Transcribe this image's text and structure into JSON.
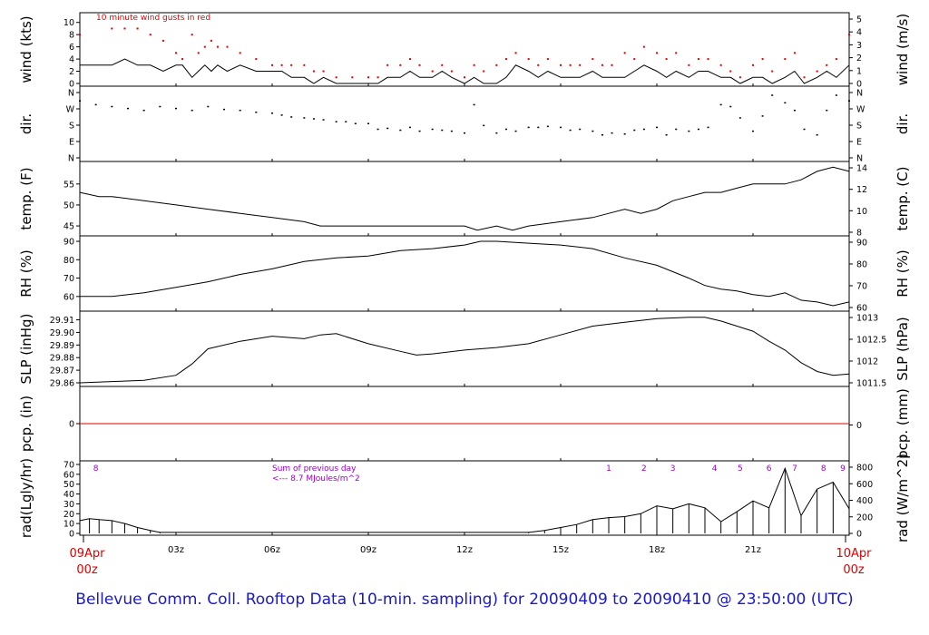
{
  "title": "Bellevue Comm. Coll. Rooftop Data (10-min. sampling) for 20090409  to  20090410 @ 23:50:00  (UTC)",
  "x_start": {
    "date": "09Apr",
    "time": "00z"
  },
  "x_end": {
    "date": "10Apr",
    "time": "00z"
  },
  "x_ticks": [
    "03z",
    "06z",
    "09z",
    "12z",
    "15z",
    "18z",
    "21z"
  ],
  "colors": {
    "title": "#1a1ac8",
    "gust": "#e00000",
    "zero_line": "#e00000",
    "annotation": "#9a00cc",
    "series": "#000000"
  },
  "chart_data": [
    {
      "type": "line",
      "panel": "wind",
      "left_label": "wind (kts)",
      "right_label": "wind (m/s)",
      "annotation": "10 minute wind gusts in red",
      "ylim": [
        0,
        11
      ],
      "left_ticks": [
        "0",
        "2",
        "4",
        "6",
        "8",
        "10"
      ],
      "right_ticks": [
        "0",
        "1",
        "2",
        "3",
        "4",
        "5"
      ],
      "x_hours": [
        0,
        1,
        1.4,
        1.8,
        2.2,
        2.6,
        3,
        3.2,
        3.5,
        3.7,
        3.9,
        4.1,
        4.3,
        4.6,
        5,
        5.5,
        6,
        6.3,
        6.6,
        7,
        7.3,
        7.6,
        8,
        8.5,
        9,
        9.3,
        9.6,
        10,
        10.3,
        10.6,
        11,
        11.3,
        11.6,
        12,
        12.3,
        12.6,
        13,
        13.3,
        13.6,
        14,
        14.3,
        14.6,
        15,
        15.3,
        15.6,
        16,
        16.3,
        16.6,
        17,
        17.3,
        17.6,
        18,
        18.3,
        18.6,
        19,
        19.3,
        19.6,
        20,
        20.3,
        20.6,
        21,
        21.3,
        21.6,
        22,
        22.3,
        22.6,
        23,
        23.3,
        23.6,
        24
      ],
      "sustained": [
        3,
        3,
        4,
        3,
        3,
        2,
        3,
        3,
        1,
        2,
        3,
        2,
        3,
        2,
        3,
        2,
        2,
        2,
        1,
        1,
        0,
        1,
        0,
        0,
        0,
        0,
        1,
        1,
        2,
        1,
        1,
        2,
        1,
        0,
        1,
        0,
        0,
        1,
        3,
        2,
        1,
        2,
        1,
        1,
        1,
        2,
        1,
        1,
        1,
        2,
        3,
        2,
        1,
        2,
        1,
        2,
        2,
        1,
        1,
        0,
        1,
        1,
        0,
        1,
        2,
        0,
        1,
        2,
        1,
        3
      ],
      "gusts": [
        8,
        9,
        9,
        9,
        8,
        7,
        5,
        4,
        8,
        5,
        6,
        7,
        6,
        6,
        5,
        4,
        3,
        3,
        3,
        3,
        2,
        2,
        1,
        1,
        1,
        1,
        3,
        3,
        4,
        3,
        2,
        3,
        2,
        1,
        3,
        2,
        3,
        4,
        5,
        4,
        3,
        4,
        3,
        3,
        3,
        4,
        3,
        3,
        5,
        4,
        6,
        5,
        4,
        5,
        3,
        4,
        4,
        3,
        2,
        1,
        3,
        4,
        2,
        4,
        5,
        1,
        2,
        3,
        4,
        8
      ]
    },
    {
      "type": "scatter",
      "panel": "dir",
      "left_label": "dir.",
      "right_label": "dir.",
      "ylim": [
        0,
        360
      ],
      "left_ticks": [
        "N",
        "E",
        "S",
        "W",
        "N"
      ],
      "right_ticks": [
        "N",
        "E",
        "S",
        "W",
        "N"
      ],
      "x_hours": [
        0,
        0.5,
        1,
        1.5,
        2,
        2.5,
        3,
        3.5,
        4,
        4.5,
        5,
        5.5,
        6,
        6.3,
        6.6,
        7,
        7.3,
        7.6,
        8,
        8.3,
        8.6,
        9,
        9.3,
        9.6,
        10,
        10.3,
        10.6,
        11,
        11.3,
        11.6,
        12,
        12.3,
        12.6,
        13,
        13.3,
        13.6,
        14,
        14.3,
        14.6,
        15,
        15.3,
        15.6,
        16,
        16.3,
        16.6,
        17,
        17.3,
        17.6,
        18,
        18.3,
        18.6,
        19,
        19.3,
        19.6,
        20,
        20.3,
        20.6,
        21,
        21.3,
        21.6,
        22,
        22.3,
        22.6,
        23,
        23.3,
        23.6,
        24
      ],
      "values": [
        300,
        280,
        270,
        260,
        250,
        270,
        260,
        250,
        270,
        255,
        250,
        240,
        235,
        225,
        215,
        210,
        205,
        200,
        190,
        190,
        180,
        180,
        150,
        155,
        145,
        160,
        140,
        150,
        145,
        140,
        130,
        280,
        170,
        130,
        150,
        140,
        160,
        160,
        165,
        160,
        145,
        150,
        140,
        120,
        130,
        125,
        145,
        150,
        160,
        120,
        150,
        140,
        150,
        160,
        280,
        270,
        210,
        140,
        220,
        330,
        290,
        250,
        150,
        120,
        250,
        330,
        300
      ]
    },
    {
      "type": "line",
      "panel": "temp",
      "left_label": "temp. (F)",
      "right_label": "temp. (C)",
      "ylim": [
        43.5,
        59.5
      ],
      "left_ticks": [
        "45",
        "50",
        "55"
      ],
      "right_ticks": [
        "8",
        "10",
        "12",
        "14"
      ],
      "x_hours": [
        0,
        0.6,
        1,
        2,
        3,
        4,
        5,
        6,
        7,
        7.5,
        8,
        9,
        10,
        11,
        12,
        12.4,
        13,
        13.5,
        14,
        15,
        16,
        16.5,
        17,
        17.5,
        18,
        18.5,
        19,
        19.5,
        20,
        20.5,
        21,
        21.5,
        22,
        22.5,
        23,
        23.5,
        24
      ],
      "values": [
        53,
        52,
        52,
        51,
        50,
        49,
        48,
        47,
        46,
        45,
        45,
        45,
        45,
        45,
        45,
        44,
        45,
        44,
        45,
        46,
        47,
        48,
        49,
        48,
        49,
        51,
        52,
        53,
        53,
        54,
        55,
        55,
        55,
        56,
        58,
        59,
        58
      ]
    },
    {
      "type": "line",
      "panel": "rh",
      "left_label": "RH (%)",
      "right_label": "RH (%)",
      "ylim": [
        54,
        91
      ],
      "left_ticks": [
        "60",
        "70",
        "80",
        "90"
      ],
      "right_ticks": [
        "60",
        "70",
        "80",
        "90"
      ],
      "x_hours": [
        0,
        1,
        2,
        3,
        4,
        5,
        6,
        7,
        8,
        9,
        10,
        11,
        12,
        12.5,
        13,
        14,
        15,
        16,
        17,
        18,
        19,
        19.5,
        20,
        20.5,
        21,
        21.5,
        22,
        22.5,
        23,
        23.5,
        24
      ],
      "values": [
        60,
        60,
        62,
        65,
        68,
        72,
        75,
        79,
        81,
        82,
        85,
        86,
        88,
        90,
        90,
        89,
        88,
        86,
        81,
        77,
        70,
        66,
        64,
        63,
        61,
        60,
        62,
        58,
        57,
        55,
        57
      ]
    },
    {
      "type": "line",
      "panel": "slp",
      "left_label": "SLP (inHg)",
      "right_label": "SLP (hPa)",
      "ylim": [
        29.86,
        29.914
      ],
      "left_ticks": [
        "29.86",
        "29.87",
        "29.88",
        "29.89",
        "29.90",
        "29.91"
      ],
      "right_ticks": [
        "1011.5",
        "1012",
        "1012.5",
        "1013"
      ],
      "x_hours": [
        0,
        1,
        2,
        3,
        3.5,
        4,
        5,
        6,
        7,
        7.5,
        8,
        9,
        10,
        10.5,
        11,
        12,
        13,
        14,
        15,
        16,
        17,
        18,
        19,
        19.5,
        20,
        21,
        21.5,
        22,
        22.5,
        23,
        23.5,
        24
      ],
      "values": [
        29.86,
        29.861,
        29.862,
        29.866,
        29.875,
        29.887,
        29.893,
        29.897,
        29.895,
        29.898,
        29.899,
        29.891,
        29.885,
        29.882,
        29.883,
        29.886,
        29.888,
        29.891,
        29.898,
        29.905,
        29.908,
        29.911,
        29.912,
        29.912,
        29.909,
        29.901,
        29.893,
        29.886,
        29.876,
        29.869,
        29.866,
        29.867
      ]
    },
    {
      "type": "line",
      "panel": "pcp",
      "left_label": "pcp. (in)",
      "right_label": "pcp. (mm)",
      "ylim": [
        -1,
        1
      ],
      "left_ticks": [
        "0"
      ],
      "right_ticks": [
        "0"
      ],
      "x_hours": [
        0,
        24
      ],
      "values": [
        0,
        0
      ]
    },
    {
      "type": "bar",
      "panel": "rad",
      "left_label": "rad(Lgly/hr)",
      "right_label": "rad (W/m^2)",
      "ylim": [
        0,
        70
      ],
      "left_ticks": [
        "0",
        "10",
        "20",
        "30",
        "40",
        "50",
        "60",
        "70"
      ],
      "right_ticks": [
        "0",
        "200",
        "400",
        "600",
        "800"
      ],
      "annotation_lines": [
        "Sum of previous day",
        "<--- 8.7 MJoules/m^2"
      ],
      "hour_labels": [
        "8",
        "1",
        "2",
        "3",
        "4",
        "5",
        "6",
        "7",
        "8",
        "9"
      ],
      "hour_label_x": [
        0.5,
        16.5,
        17.6,
        18.5,
        19.8,
        20.6,
        21.5,
        22.3,
        23.2,
        23.8
      ],
      "x_hours": [
        0,
        0.3,
        0.6,
        1,
        1.4,
        1.8,
        2.2,
        2.5,
        14,
        14.5,
        15,
        15.5,
        16,
        16.5,
        17,
        17.5,
        18,
        18.5,
        19,
        19.5,
        20,
        20.5,
        21,
        21.5,
        22,
        22.5,
        23,
        23.5,
        24
      ],
      "values": [
        13,
        15,
        14,
        13,
        10,
        6,
        3,
        1,
        1,
        3,
        6,
        9,
        14,
        16,
        17,
        20,
        28,
        25,
        30,
        26,
        12,
        22,
        33,
        26,
        66,
        18,
        45,
        52,
        25
      ]
    }
  ]
}
